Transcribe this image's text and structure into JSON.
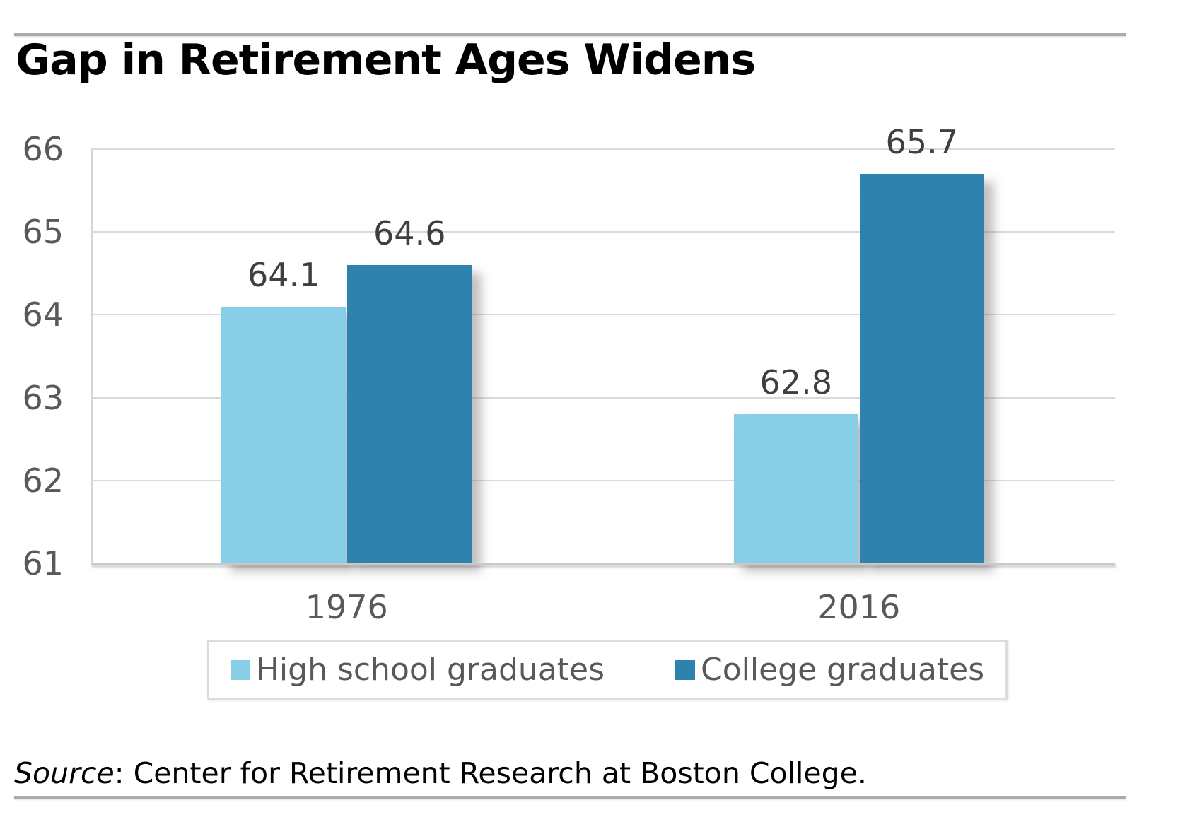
{
  "title": "Gap in Retirement Ages Widens",
  "source": {
    "italic_part": "Source",
    "rest": ": Center for Retirement Research at Boston College."
  },
  "legend": {
    "items": [
      {
        "label": "High school graduates",
        "color": "#87CEE6"
      },
      {
        "label": "College graduates",
        "color": "#2F81AE"
      }
    ]
  },
  "chart_data": {
    "type": "bar",
    "title": "Gap in Retirement Ages Widens",
    "categories": [
      "1976",
      "2016"
    ],
    "series": [
      {
        "name": "High school graduates",
        "color": "#87CEE6",
        "values": [
          64.1,
          62.8
        ]
      },
      {
        "name": "College graduates",
        "color": "#2F81AE",
        "values": [
          64.6,
          65.7
        ]
      }
    ],
    "data_labels": {
      "High school graduates": [
        "64.1",
        "62.8"
      ],
      "College graduates": [
        "64.6",
        "65.7"
      ]
    },
    "ylim": [
      61,
      66
    ],
    "yticks": [
      61,
      62,
      63,
      64,
      65,
      66
    ],
    "xlabel": "",
    "ylabel": "",
    "grid": true,
    "legend_position": "bottom",
    "colors": {
      "gridline": "#D9D9D9",
      "axis_line": "#C9C9C9",
      "tick_text": "#595959",
      "data_label_text": "#3F3F3F",
      "rule": "#ABABAB",
      "legend_border": "#DCDCDC",
      "legend_text": "#595959",
      "title_text": "#000000"
    }
  }
}
